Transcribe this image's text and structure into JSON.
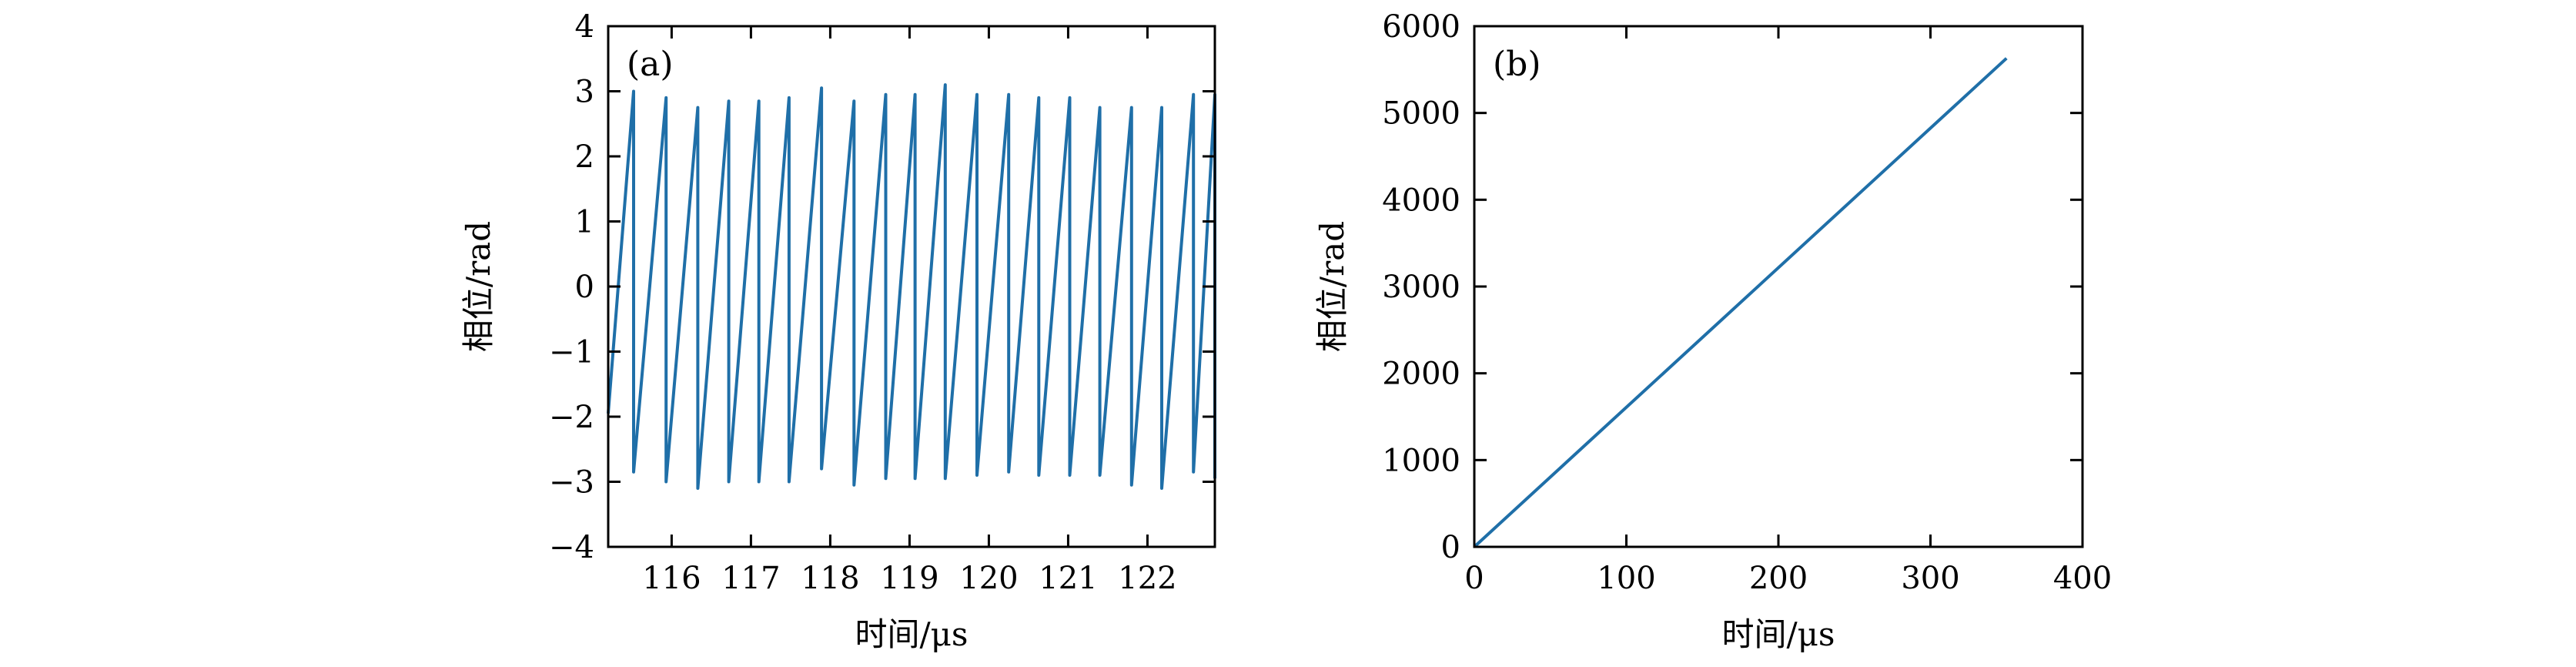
{
  "chart_data": [
    {
      "type": "line",
      "panel_label": "(a)",
      "xlabel": "时间/μs",
      "ylabel": "相位/rad",
      "xlim": [
        115.2,
        122.85
      ],
      "ylim": [
        -4,
        4
      ],
      "xticks": [
        116,
        117,
        118,
        119,
        120,
        121,
        122
      ],
      "yticks": [
        -4,
        -3,
        -2,
        -1,
        0,
        1,
        2,
        3,
        4
      ],
      "ytick_labels": [
        "−4",
        "−3",
        "−2",
        "−1",
        "0",
        "1",
        "2",
        "3",
        "4"
      ],
      "grid": false,
      "color": "#1f6fa8",
      "series": [
        {
          "x": [
            115.2,
            115.52,
            115.52,
            115.93,
            115.93,
            116.33,
            116.33,
            116.72,
            116.72,
            117.1,
            117.1,
            117.48,
            117.48,
            117.89,
            117.89,
            118.3,
            118.3,
            118.7,
            118.7,
            119.07,
            119.07,
            119.45,
            119.45,
            119.85,
            119.85,
            120.25,
            120.25,
            120.63,
            120.63,
            121.02,
            121.02,
            121.4,
            121.4,
            121.8,
            121.8,
            122.18,
            122.18,
            122.58,
            122.58,
            122.85,
            122.85
          ],
          "y": [
            -1.95,
            3.0,
            -2.85,
            2.9,
            -3.0,
            2.75,
            -3.1,
            2.85,
            -3.0,
            2.85,
            -3.0,
            2.9,
            -3.0,
            3.05,
            -2.8,
            2.85,
            -3.05,
            2.95,
            -2.95,
            2.95,
            -2.95,
            3.1,
            -2.95,
            2.95,
            -2.9,
            2.95,
            -2.85,
            2.9,
            -2.9,
            2.9,
            -2.9,
            2.75,
            -2.9,
            2.75,
            -3.05,
            2.75,
            -3.1,
            2.95,
            -2.85,
            2.95,
            -2.95
          ]
        }
      ]
    },
    {
      "type": "line",
      "panel_label": "(b)",
      "xlabel": "时间/μs",
      "ylabel": "相位/rad",
      "xlim": [
        0,
        400
      ],
      "ylim": [
        0,
        6000
      ],
      "xticks": [
        0,
        100,
        200,
        300,
        400
      ],
      "yticks": [
        0,
        1000,
        2000,
        3000,
        4000,
        5000,
        6000
      ],
      "ytick_labels": [
        "0",
        "1000",
        "2000",
        "3000",
        "4000",
        "5000",
        "6000"
      ],
      "grid": false,
      "color": "#1f6fa8",
      "series": [
        {
          "x": [
            0,
            350
          ],
          "y": [
            0,
            5630
          ]
        }
      ]
    }
  ]
}
